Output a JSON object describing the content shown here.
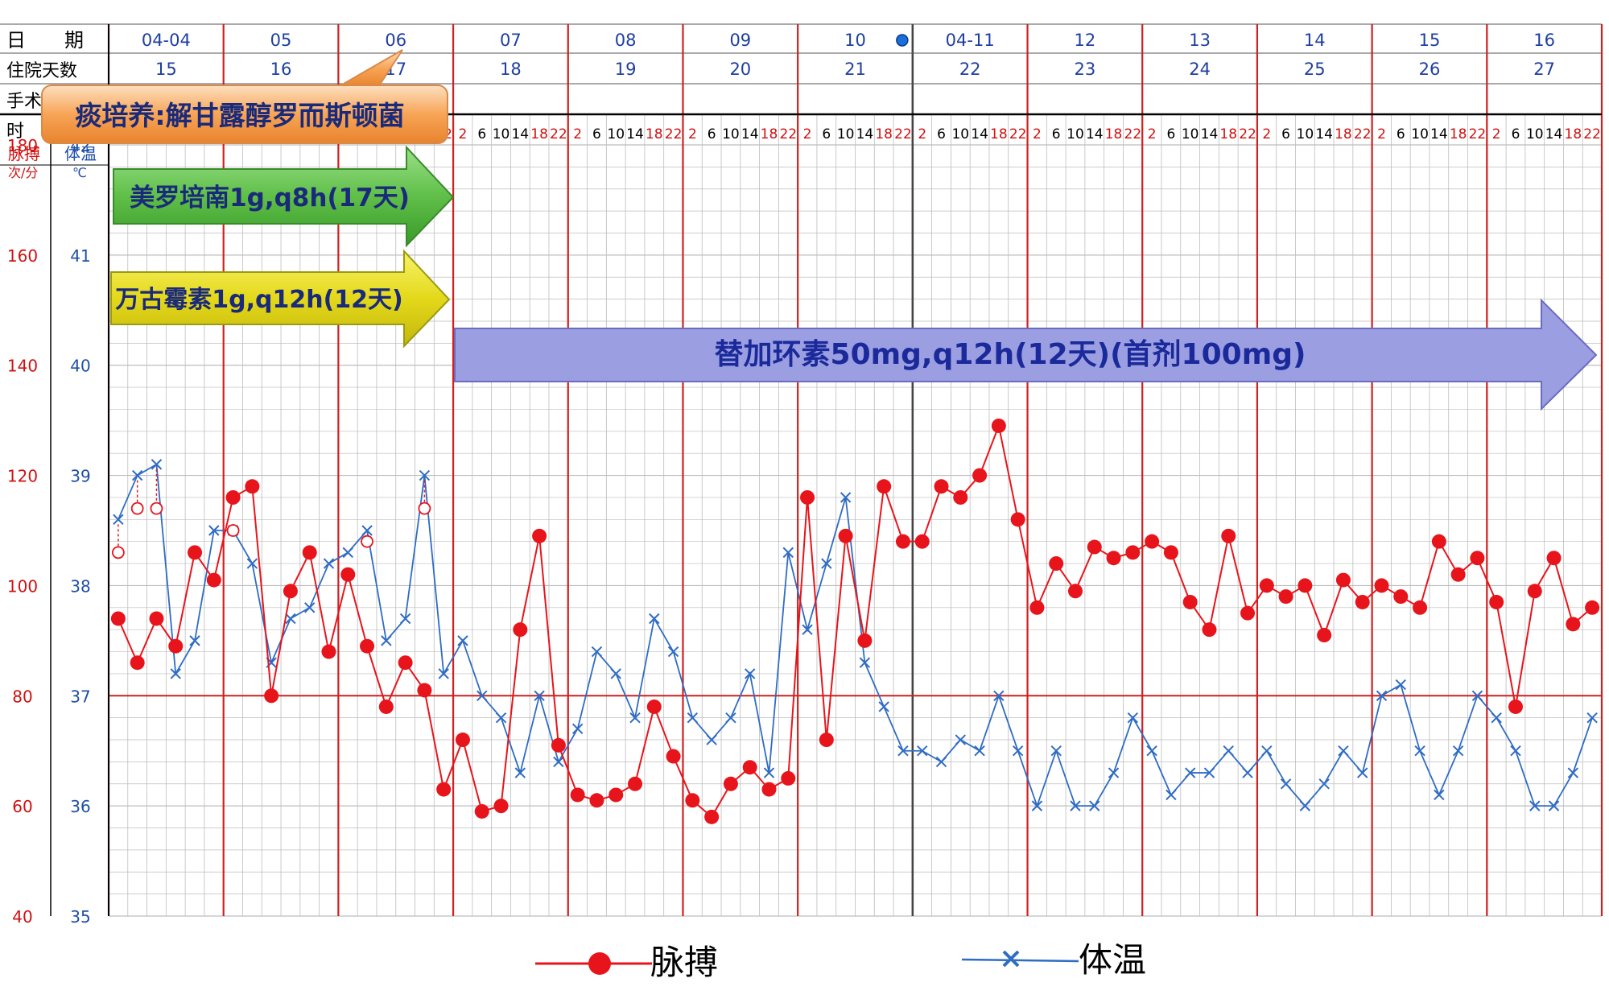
{
  "header": {
    "date_label": "日　　期",
    "inpatient_day_label": "住院天数",
    "surgery_label": "手术",
    "time_label": "时",
    "pulse_axis_label": "脉搏",
    "pulse_unit": "次/分",
    "temp_axis_label": "体温",
    "temp_unit": "℃"
  },
  "dates": [
    "04-04",
    "05",
    "06",
    "07",
    "08",
    "09",
    "10",
    "04-11",
    "12",
    "13",
    "14",
    "15",
    "16"
  ],
  "inpatient_days": [
    "15",
    "16",
    "17",
    "18",
    "19",
    "20",
    "21",
    "22",
    "23",
    "24",
    "25",
    "26",
    "27"
  ],
  "time_ticks": [
    "2",
    "6",
    "10",
    "14",
    "18",
    "22"
  ],
  "annotations": {
    "culture": "痰培养:解甘露醇罗而斯顿菌",
    "meropenem": "美罗培南1g,q8h(17天)",
    "vancomycin": "万古霉素1g,q12h(12天)",
    "tigecycline": "替加环素50mg,q12h(12天)(首剂100mg)"
  },
  "legend": {
    "pulse": "脉搏",
    "temperature": "体温"
  },
  "colors": {
    "pulse": "#e8141b",
    "temperature": "#2f6cc4",
    "grid": "#bdbdbd",
    "day_line": "#d02020",
    "baseline": "#d02020",
    "pulse_axis_text": "#d01010",
    "temp_axis_text": "#1f4fa8"
  },
  "chart_data": {
    "type": "line",
    "x_unit": "4-hour slot (2,6,10,14,18,22 per day)",
    "pulse_axis": {
      "ticks": [
        180,
        160,
        140,
        120,
        100,
        80,
        60,
        40
      ],
      "range": [
        40,
        180
      ]
    },
    "temp_axis": {
      "ticks": [
        42,
        41,
        40,
        39,
        38,
        37,
        36,
        35
      ],
      "range": [
        35,
        42
      ]
    },
    "reference_line": {
      "axis": "pulse",
      "value": 80
    },
    "series": [
      {
        "name": "脉搏",
        "axis": "pulse",
        "values": [
          94,
          86,
          94,
          89,
          106,
          101,
          116,
          118,
          80,
          99,
          106,
          88,
          102,
          89,
          78,
          86,
          81,
          63,
          72,
          59,
          60,
          92,
          109,
          71,
          62,
          61,
          62,
          64,
          78,
          69,
          61,
          58,
          64,
          67,
          63,
          65,
          116,
          72,
          109,
          90,
          118,
          108,
          108,
          118,
          116,
          120,
          129,
          112,
          96,
          104,
          99,
          107,
          105,
          106,
          108,
          106,
          97,
          92,
          109,
          95,
          100,
          98,
          100,
          91,
          101,
          97,
          100,
          98,
          96,
          108,
          102,
          105,
          97,
          78,
          99,
          105,
          93,
          96
        ]
      },
      {
        "name": "体温",
        "axis": "temp",
        "values": [
          38.6,
          39.0,
          39.1,
          37.2,
          37.5,
          38.5,
          38.5,
          38.2,
          37.3,
          37.7,
          37.8,
          38.2,
          38.3,
          38.5,
          37.5,
          37.7,
          39.0,
          37.2,
          37.5,
          37.0,
          36.8,
          36.3,
          37.0,
          36.4,
          36.7,
          37.4,
          37.2,
          36.8,
          37.7,
          37.4,
          36.8,
          36.6,
          36.8,
          37.2,
          36.3,
          38.3,
          37.6,
          38.2,
          38.8,
          37.3,
          36.9,
          36.5,
          36.5,
          36.4,
          36.6,
          36.5,
          37.0,
          36.5,
          36.0,
          36.5,
          36.0,
          36.0,
          36.3,
          36.8,
          36.5,
          36.1,
          36.3,
          36.3,
          36.5,
          36.3,
          36.5,
          36.2,
          36.0,
          36.2,
          36.5,
          36.3,
          37.0,
          37.1,
          36.5,
          36.1,
          36.5,
          37.0,
          36.8,
          36.5,
          36.0,
          36.0,
          36.3,
          36.8
        ]
      }
    ],
    "fever_markers": [
      {
        "slot": 0,
        "temperature": 38.3
      },
      {
        "slot": 1,
        "temperature": 38.7
      },
      {
        "slot": 2,
        "temperature": 38.7
      },
      {
        "slot": 6,
        "temperature": 38.5
      },
      {
        "slot": 13,
        "temperature": 38.4
      },
      {
        "slot": 16,
        "temperature": 38.7
      }
    ]
  }
}
